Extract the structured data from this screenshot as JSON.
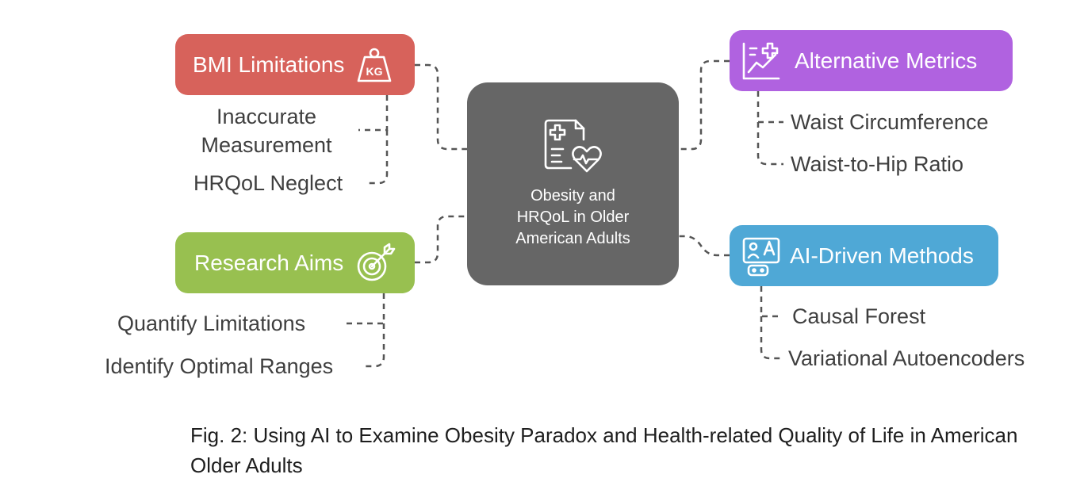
{
  "center": {
    "title": "Obesity and\nHRQoL in Older\nAmerican Adults",
    "icon": "health-record-heart-icon"
  },
  "branches": {
    "bmi": {
      "label": "BMI Limitations",
      "icon": "kg-weight-icon",
      "color": "#d7625b",
      "items": [
        "Inaccurate\nMeasurement",
        "HRQoL Neglect"
      ]
    },
    "aims": {
      "label": "Research Aims",
      "icon": "target-arrow-icon",
      "color": "#98c050",
      "items": [
        "Quantify Limitations",
        "Identify Optimal Ranges"
      ]
    },
    "alt": {
      "label": "Alternative Metrics",
      "icon": "chart-plus-icon",
      "color": "#b062e0",
      "items": [
        "Waist Circumference",
        "Waist-to-Hip Ratio"
      ]
    },
    "ai": {
      "label": "AI-Driven Methods",
      "icon": "ai-robot-icon",
      "color": "#4fa8d6",
      "items": [
        "Causal Forest",
        "Variational Autoencoders"
      ]
    }
  },
  "caption": "Fig. 2: Using AI to Examine Obesity Paradox and Health-related Quality of Life in American Older Adults"
}
